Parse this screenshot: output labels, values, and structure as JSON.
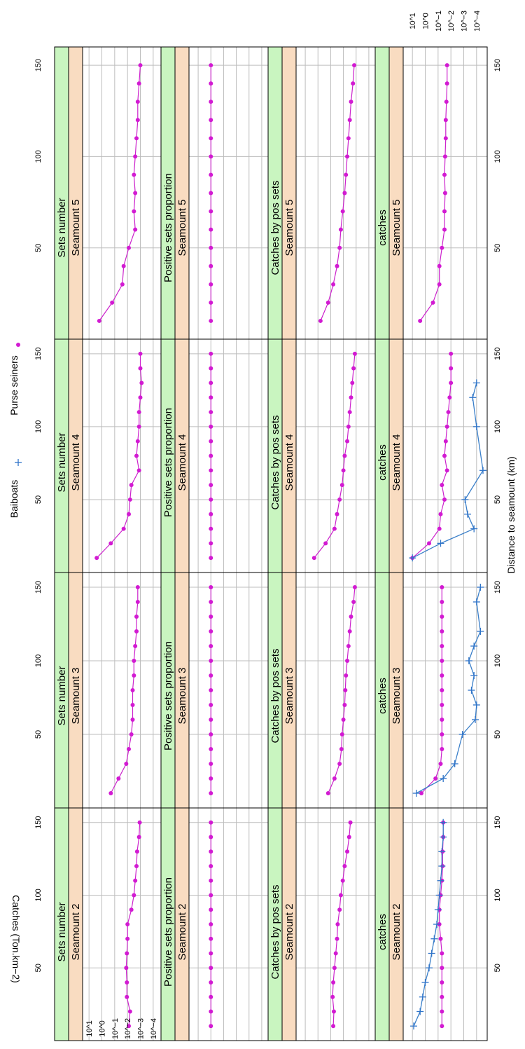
{
  "legend": {
    "baitboats_label": "Baiboats",
    "purse_label": "Purse seiners"
  },
  "axes": {
    "x_title": "Distance to seamount (km)",
    "y_title": "Catches (Ton.km−2)",
    "y_tick_labels": [
      "10^1",
      "10^0",
      "10^−1",
      "10^−2",
      "10^−3",
      "10^−4"
    ],
    "y_exponents": [
      1,
      0,
      -1,
      -2,
      -3,
      -4
    ],
    "x_tick_labels": [
      "50",
      "100",
      "150"
    ],
    "x_ticks": [
      50,
      100,
      150
    ]
  },
  "colors": {
    "purse": "#d21ad2",
    "baitboats": "#2f74c8",
    "strip_top": "#c9f5c0",
    "strip_bottom": "#f9dcc1",
    "grid": "#bdbdbd"
  },
  "chart_data": {
    "type": "line",
    "xlabel": "Distance to seamount (km)",
    "ylabel": "Catches (Ton.km−2)",
    "y_scale": "log10",
    "x_range": [
      0,
      160
    ],
    "y_range_log10": [
      1.5,
      -4.5
    ],
    "layout": "4 rows (variables) x 4 columns (seamounts); image rotated 90 degrees",
    "variables": [
      "Sets number",
      "Positive sets proportion",
      "Catches by pos sets",
      "catches"
    ],
    "seamounts": [
      "Seamount 2",
      "Seamount 3",
      "Seamount 4",
      "Seamount 5"
    ],
    "panels": [
      {
        "variable": "Sets number",
        "seamount": "Seamount 2",
        "series": [
          {
            "name": "Purse seiners",
            "x": [
              10,
              20,
              30,
              40,
              50,
              60,
              70,
              80,
              90,
              100,
              110,
              120,
              130,
              140,
              150
            ],
            "log10_y": [
              -2.1,
              -2.2,
              -1.95,
              -1.95,
              -1.9,
              -1.95,
              -2.0,
              -2.0,
              -2.3,
              -2.5,
              -2.6,
              -2.7,
              -2.75,
              -2.9,
              -2.95
            ]
          }
        ]
      },
      {
        "variable": "Sets number",
        "seamount": "Seamount 3",
        "series": [
          {
            "name": "Purse seiners",
            "x": [
              10,
              20,
              30,
              40,
              50,
              60,
              70,
              80,
              90,
              100,
              110,
              120,
              130,
              140,
              150
            ],
            "log10_y": [
              -0.7,
              -1.3,
              -1.9,
              -2.1,
              -2.3,
              -2.4,
              -2.4,
              -2.4,
              -2.5,
              -2.5,
              -2.6,
              -2.7,
              -2.7,
              -2.8,
              -2.8
            ]
          }
        ]
      },
      {
        "variable": "Sets number",
        "seamount": "Seamount 4",
        "series": [
          {
            "name": "Purse seiners",
            "x": [
              10,
              20,
              30,
              40,
              50,
              60,
              70,
              80,
              90,
              100,
              110,
              120,
              130,
              140,
              150
            ],
            "log10_y": [
              0.4,
              -0.7,
              -1.7,
              -2.1,
              -2.2,
              -2.3,
              -2.9,
              -2.7,
              -2.8,
              -2.9,
              -2.9,
              -3.0,
              -3.1,
              -3.0,
              -3.0
            ]
          }
        ]
      },
      {
        "variable": "Sets number",
        "seamount": "Seamount 5",
        "series": [
          {
            "name": "Purse seiners",
            "x": [
              10,
              20,
              30,
              40,
              50,
              60,
              70,
              80,
              90,
              100,
              110,
              120,
              130,
              140,
              150
            ],
            "log10_y": [
              0.2,
              -0.8,
              -1.6,
              -1.7,
              -2.1,
              -2.6,
              -2.5,
              -2.6,
              -2.5,
              -2.6,
              -2.7,
              -2.8,
              -2.8,
              -2.9,
              -3.0
            ]
          }
        ]
      },
      {
        "variable": "Positive sets proportion",
        "seamount": "Seamount 2",
        "series": [
          {
            "name": "Purse seiners",
            "x": [
              10,
              20,
              30,
              40,
              50,
              60,
              70,
              80,
              90,
              100,
              110,
              120,
              130,
              140,
              150
            ],
            "log10_y": [
              0,
              0,
              0,
              0,
              0,
              0,
              0,
              0,
              0,
              0,
              0,
              0,
              0,
              0,
              0
            ]
          }
        ]
      },
      {
        "variable": "Positive sets proportion",
        "seamount": "Seamount 3",
        "series": [
          {
            "name": "Purse seiners",
            "x": [
              10,
              20,
              30,
              40,
              50,
              60,
              70,
              80,
              90,
              100,
              110,
              120,
              130,
              140,
              150
            ],
            "log10_y": [
              0,
              0,
              0,
              0,
              0,
              0,
              0,
              0,
              0,
              0,
              0,
              0,
              0,
              0,
              0
            ]
          }
        ]
      },
      {
        "variable": "Positive sets proportion",
        "seamount": "Seamount 4",
        "series": [
          {
            "name": "Purse seiners",
            "x": [
              10,
              20,
              30,
              40,
              50,
              60,
              70,
              80,
              90,
              100,
              110,
              120,
              130,
              140,
              150
            ],
            "log10_y": [
              0,
              0,
              0,
              0,
              0,
              0,
              0,
              0,
              0,
              0,
              0,
              0,
              0,
              0,
              0
            ]
          }
        ]
      },
      {
        "variable": "Positive sets proportion",
        "seamount": "Seamount 5",
        "series": [
          {
            "name": "Purse seiners",
            "x": [
              10,
              20,
              30,
              40,
              50,
              60,
              70,
              80,
              90,
              100,
              110,
              120,
              130,
              140,
              150
            ],
            "log10_y": [
              0,
              0,
              0,
              0,
              0,
              0,
              0,
              0,
              0,
              0,
              0,
              0,
              0,
              0,
              0
            ]
          }
        ]
      },
      {
        "variable": "Catches by pos sets",
        "seamount": "Seamount 2",
        "series": [
          {
            "name": "Purse seiners",
            "x": [
              10,
              20,
              30,
              40,
              50,
              60,
              70,
              80,
              90,
              100,
              110,
              120,
              130,
              140,
              150
            ],
            "log10_y": [
              -1.2,
              -1.25,
              -1.15,
              -1.2,
              -1.3,
              -1.4,
              -1.5,
              -1.55,
              -1.7,
              -1.8,
              -1.95,
              -2.1,
              -2.3,
              -2.45,
              -2.55
            ]
          }
        ]
      },
      {
        "variable": "Catches by pos sets",
        "seamount": "Seamount 3",
        "series": [
          {
            "name": "Purse seiners",
            "x": [
              10,
              20,
              30,
              40,
              50,
              60,
              70,
              80,
              90,
              100,
              110,
              120,
              130,
              140,
              150
            ],
            "log10_y": [
              -0.8,
              -1.3,
              -1.7,
              -1.85,
              -1.9,
              -2.0,
              -2.1,
              -2.15,
              -2.2,
              -2.3,
              -2.4,
              -2.5,
              -2.6,
              -2.8,
              -2.9
            ]
          }
        ]
      },
      {
        "variable": "Catches by pos sets",
        "seamount": "Seamount 4",
        "series": [
          {
            "name": "Purse seiners",
            "x": [
              10,
              20,
              30,
              40,
              50,
              60,
              70,
              80,
              90,
              100,
              110,
              120,
              130,
              140,
              150
            ],
            "log10_y": [
              0.3,
              -0.6,
              -1.3,
              -1.5,
              -1.7,
              -1.9,
              -2.0,
              -2.1,
              -2.3,
              -2.4,
              -2.5,
              -2.6,
              -2.7,
              -2.8,
              -2.9
            ]
          }
        ]
      },
      {
        "variable": "Catches by pos sets",
        "seamount": "Seamount 5",
        "series": [
          {
            "name": "Purse seiners",
            "x": [
              10,
              20,
              30,
              40,
              50,
              60,
              70,
              80,
              90,
              100,
              110,
              120,
              130,
              140,
              150
            ],
            "log10_y": [
              -0.2,
              -0.8,
              -1.2,
              -1.5,
              -1.7,
              -1.8,
              -1.95,
              -2.1,
              -2.2,
              -2.3,
              -2.4,
              -2.5,
              -2.6,
              -2.75,
              -2.85
            ]
          }
        ]
      },
      {
        "variable": "catches",
        "seamount": "Seamount 2",
        "series": [
          {
            "name": "Purse seiners",
            "x": [
              10,
              20,
              30,
              40,
              50,
              60,
              70,
              80,
              90,
              100,
              110,
              120,
              130,
              140,
              150
            ],
            "log10_y": [
              -1.3,
              -1.3,
              -1.3,
              -1.3,
              -1.3,
              -1.3,
              -1.2,
              -1.1,
              -1.1,
              -1.2,
              -1.3,
              -1.35,
              -1.35,
              -1.4,
              -1.4
            ]
          },
          {
            "name": "Baiboats",
            "x": [
              10,
              20,
              30,
              40,
              50,
              60,
              70,
              80,
              90,
              100,
              110,
              120,
              130,
              140,
              150
            ],
            "log10_y": [
              0.9,
              0.4,
              0.2,
              0.0,
              -0.3,
              -0.5,
              -0.7,
              -0.9,
              -1.0,
              -1.1,
              -1.2,
              -1.3,
              -1.3,
              -1.4,
              -1.4
            ]
          }
        ]
      },
      {
        "variable": "catches",
        "seamount": "Seamount 3",
        "series": [
          {
            "name": "Purse seiners",
            "x": [
              10,
              20,
              30,
              40,
              50,
              60,
              70,
              80,
              90,
              100,
              110,
              120,
              130,
              140,
              150
            ],
            "log10_y": [
              0.3,
              -0.8,
              -1.2,
              -1.3,
              -1.3,
              -1.3,
              -1.3,
              -1.3,
              -1.3,
              -1.3,
              -1.3,
              -1.3,
              -1.3,
              -1.3,
              -1.3
            ]
          },
          {
            "name": "Baiboats",
            "x": [
              10,
              20,
              30,
              50,
              60,
              70,
              80,
              90,
              100,
              110,
              120,
              140,
              150
            ],
            "log10_y": [
              0.7,
              -1.4,
              -2.3,
              -2.9,
              -3.9,
              -4.0,
              -3.6,
              -3.8,
              -3.4,
              -3.8,
              -4.3,
              -4.0,
              -4.3
            ]
          }
        ]
      },
      {
        "variable": "catches",
        "seamount": "Seamount 4",
        "series": [
          {
            "name": "Purse seiners",
            "x": [
              10,
              20,
              30,
              40,
              50,
              60,
              70,
              80,
              90,
              100,
              110,
              120,
              130,
              140,
              150
            ],
            "log10_y": [
              1.0,
              -0.3,
              -1.1,
              -1.2,
              -1.5,
              -1.3,
              -1.7,
              -1.5,
              -1.6,
              -1.7,
              -1.8,
              -1.9,
              -2.0,
              -2.0,
              -2.0
            ]
          },
          {
            "name": "Baiboats",
            "x": [
              10,
              20,
              30,
              40,
              50,
              70,
              100,
              120,
              130
            ],
            "log10_y": [
              1.0,
              -1.2,
              -3.8,
              -3.3,
              -3.1,
              -4.5,
              -4.0,
              -3.7,
              -4.0
            ]
          }
        ]
      },
      {
        "variable": "catches",
        "seamount": "Seamount 5",
        "series": [
          {
            "name": "Purse seiners",
            "x": [
              10,
              20,
              30,
              40,
              50,
              60,
              70,
              80,
              90,
              100,
              110,
              120,
              130,
              140,
              150
            ],
            "log10_y": [
              0.4,
              -0.6,
              -1.1,
              -1.1,
              -1.3,
              -1.5,
              -1.5,
              -1.55,
              -1.5,
              -1.55,
              -1.6,
              -1.6,
              -1.65,
              -1.7,
              -1.7
            ]
          }
        ]
      }
    ]
  }
}
